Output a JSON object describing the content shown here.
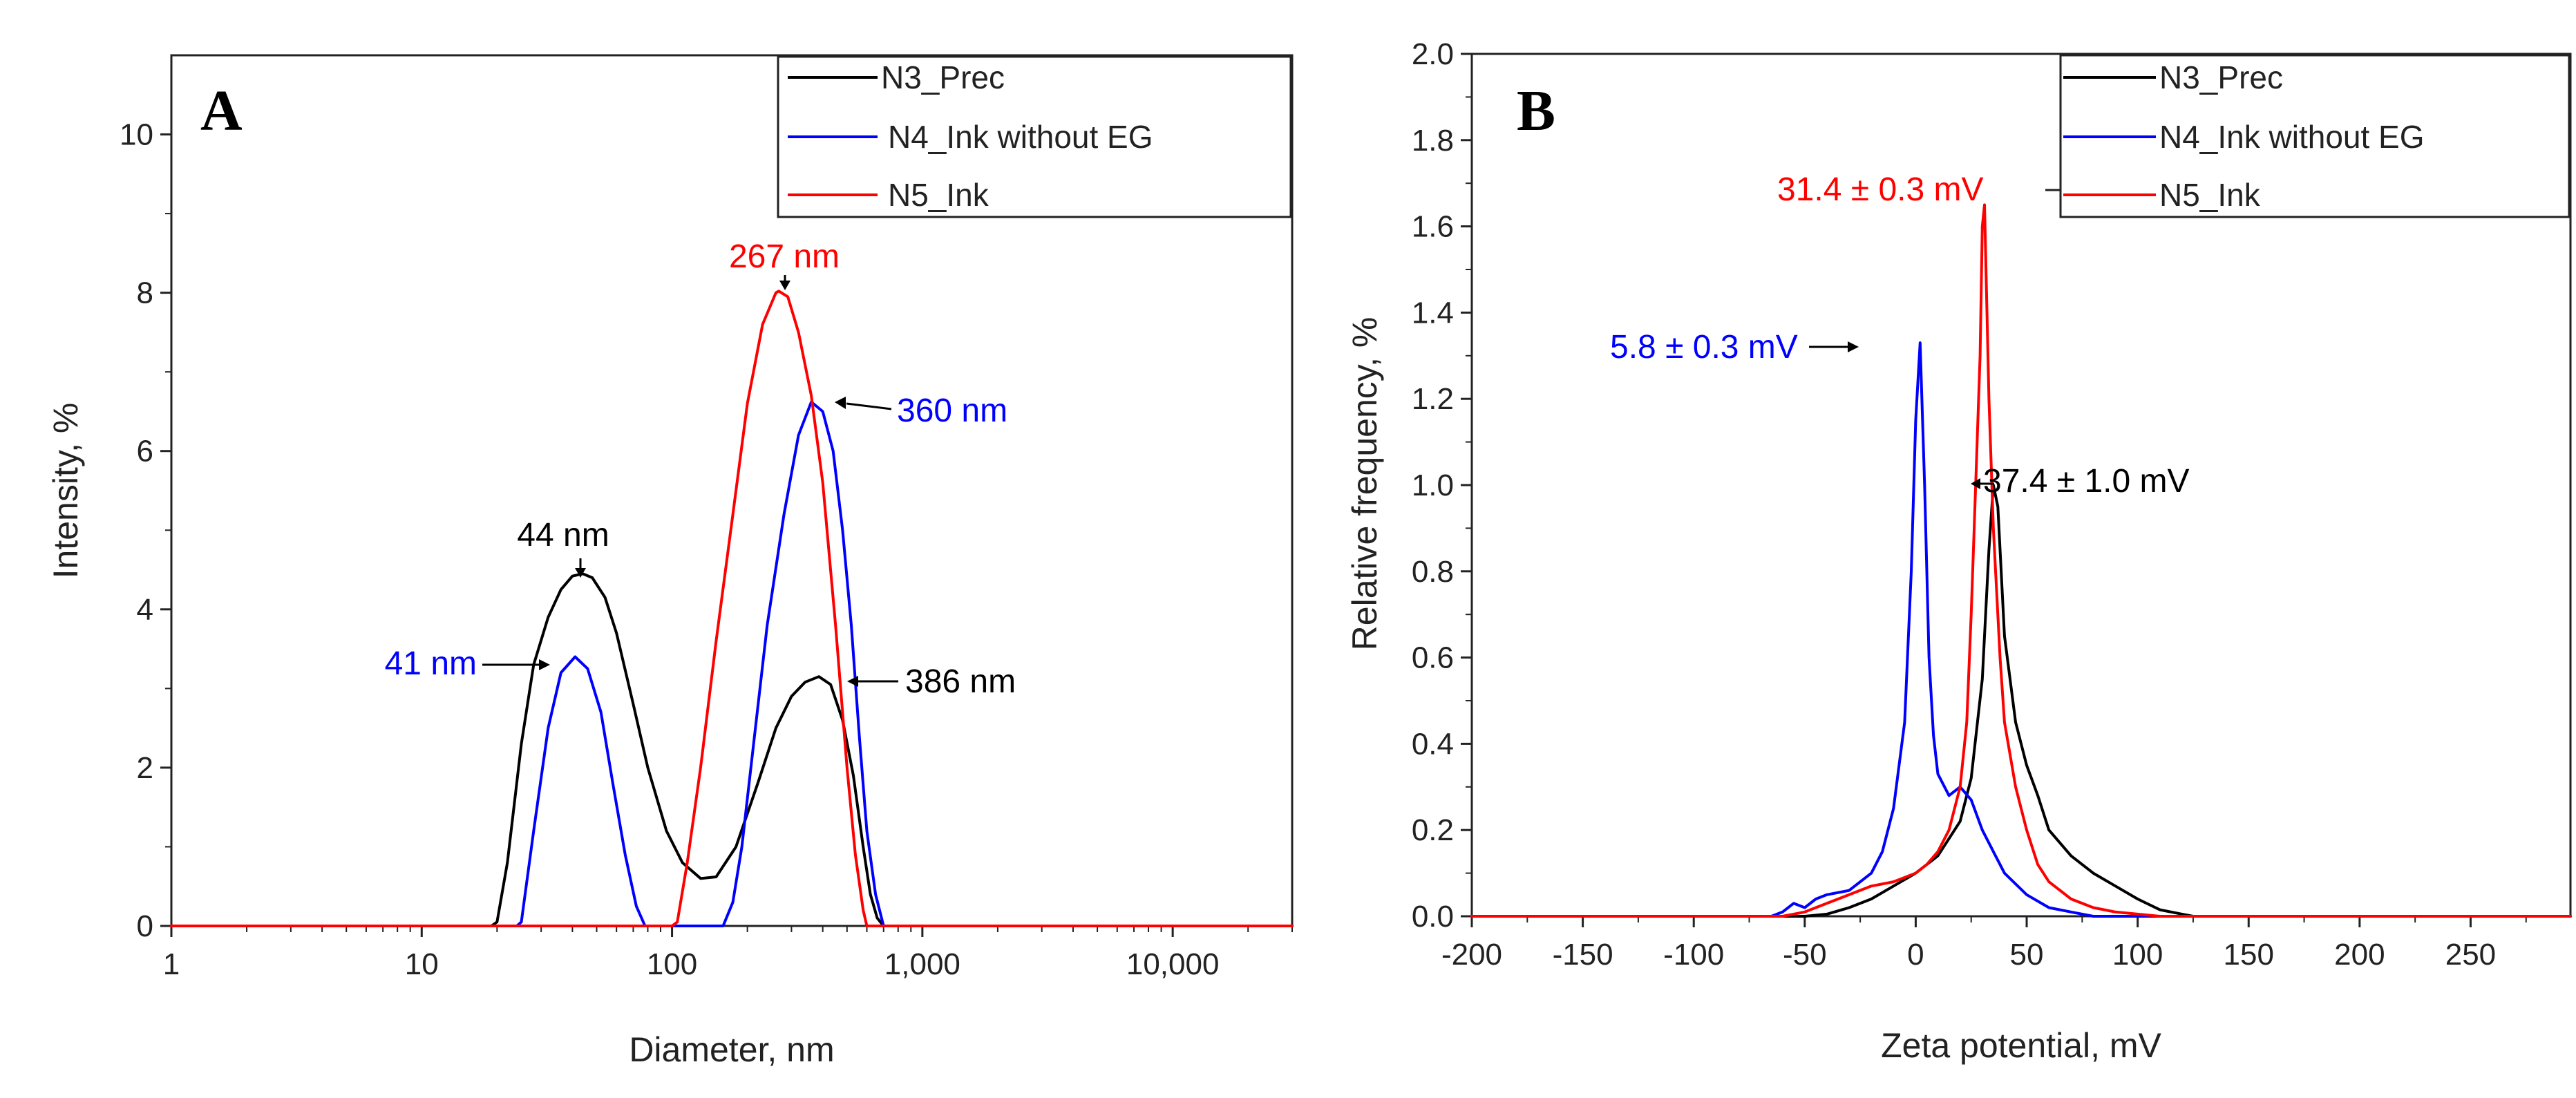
{
  "chart_data": [
    {
      "panel": "A",
      "type": "line",
      "xscale": "log",
      "xlabel": "Diameter, nm",
      "ylabel": "Intensity, %",
      "xlim": [
        1,
        30000
      ],
      "ylim": [
        0,
        11
      ],
      "xticks": [
        {
          "value": 1,
          "label": "1"
        },
        {
          "value": 10,
          "label": "10"
        },
        {
          "value": 100,
          "label": "100"
        },
        {
          "value": 1000,
          "label": "1,000"
        },
        {
          "value": 10000,
          "label": "10,000"
        }
      ],
      "yticks": [
        {
          "value": 0,
          "label": "0"
        },
        {
          "value": 2,
          "label": "2"
        },
        {
          "value": 4,
          "label": "4"
        },
        {
          "value": 6,
          "label": "6"
        },
        {
          "value": 8,
          "label": "8"
        },
        {
          "value": 10,
          "label": "10"
        }
      ],
      "legend": {
        "position": "top-right"
      },
      "series": [
        {
          "name": "N3_Prec",
          "color": "#000000",
          "x": [
            1,
            19,
            20,
            22,
            25,
            28,
            32,
            36,
            40,
            44,
            48,
            54,
            60,
            70,
            80,
            95,
            110,
            130,
            150,
            180,
            220,
            260,
            300,
            340,
            386,
            430,
            480,
            530,
            580,
            620,
            660,
            700,
            30000
          ],
          "y": [
            0,
            0,
            0.05,
            0.8,
            2.3,
            3.3,
            3.9,
            4.25,
            4.42,
            4.45,
            4.4,
            4.15,
            3.7,
            2.8,
            2.0,
            1.2,
            0.8,
            0.6,
            0.62,
            1.0,
            1.8,
            2.5,
            2.9,
            3.08,
            3.15,
            3.05,
            2.6,
            1.9,
            1.0,
            0.4,
            0.1,
            0,
            0
          ]
        },
        {
          "name": "N4_Ink without EG",
          "color": "#0000ff",
          "x": [
            1,
            24,
            25,
            28,
            32,
            36,
            41,
            46,
            52,
            58,
            65,
            72,
            78,
            160,
            175,
            190,
            210,
            240,
            280,
            320,
            360,
            400,
            440,
            480,
            520,
            560,
            600,
            650,
            700,
            30000
          ],
          "y": [
            0,
            0,
            0.05,
            1.2,
            2.5,
            3.2,
            3.4,
            3.25,
            2.7,
            1.8,
            0.9,
            0.25,
            0,
            0,
            0.3,
            1.0,
            2.2,
            3.8,
            5.2,
            6.2,
            6.62,
            6.5,
            6.0,
            5.0,
            3.8,
            2.4,
            1.2,
            0.4,
            0,
            0
          ]
        },
        {
          "name": "N5_Ink",
          "color": "#ff0000",
          "x": [
            1,
            100,
            105,
            115,
            130,
            150,
            175,
            200,
            230,
            260,
            267,
            290,
            320,
            360,
            400,
            450,
            500,
            540,
            580,
            600,
            30000
          ],
          "y": [
            0,
            0,
            0.05,
            0.8,
            2.0,
            3.6,
            5.2,
            6.6,
            7.6,
            8.0,
            8.02,
            7.95,
            7.5,
            6.7,
            5.6,
            3.8,
            2.0,
            0.9,
            0.2,
            0,
            0
          ]
        }
      ],
      "annotations": [
        {
          "text": "44 nm",
          "color": "#000000"
        },
        {
          "text": "41 nm",
          "color": "#0000ff"
        },
        {
          "text": "267 nm",
          "color": "#ff0000"
        },
        {
          "text": "360 nm",
          "color": "#0000ff"
        },
        {
          "text": "386 nm",
          "color": "#000000"
        }
      ]
    },
    {
      "panel": "B",
      "type": "line",
      "xscale": "linear",
      "xlabel": "Zeta potential, mV",
      "ylabel": "Relative frequency, %",
      "xlim": [
        -200,
        295
      ],
      "ylim": [
        0,
        2.0
      ],
      "xticks": [
        {
          "value": -200,
          "label": "-200"
        },
        {
          "value": -150,
          "label": "-150"
        },
        {
          "value": -100,
          "label": "-100"
        },
        {
          "value": -50,
          "label": "-50"
        },
        {
          "value": 0,
          "label": "0"
        },
        {
          "value": 50,
          "label": "50"
        },
        {
          "value": 100,
          "label": "100"
        },
        {
          "value": 150,
          "label": "150"
        },
        {
          "value": 200,
          "label": "200"
        },
        {
          "value": 250,
          "label": "250"
        }
      ],
      "yticks": [
        {
          "value": 0,
          "label": "0.0"
        },
        {
          "value": 0.2,
          "label": "0.2"
        },
        {
          "value": 0.4,
          "label": "0.4"
        },
        {
          "value": 0.6,
          "label": "0.6"
        },
        {
          "value": 0.8,
          "label": "0.8"
        },
        {
          "value": 1.0,
          "label": "1.0"
        },
        {
          "value": 1.2,
          "label": "1.2"
        },
        {
          "value": 1.4,
          "label": "1.4"
        },
        {
          "value": 1.6,
          "label": "1.6"
        },
        {
          "value": 1.8,
          "label": "1.8"
        },
        {
          "value": 2.0,
          "label": "2.0"
        }
      ],
      "legend": {
        "position": "top-right"
      },
      "series": [
        {
          "name": "N3_Prec",
          "color": "#000000",
          "x": [
            -200,
            -50,
            -40,
            -30,
            -20,
            -10,
            0,
            10,
            20,
            25,
            30,
            33,
            35,
            37,
            40,
            45,
            50,
            55,
            60,
            70,
            80,
            90,
            100,
            110,
            120,
            125,
            295
          ],
          "y": [
            0,
            0,
            0.005,
            0.02,
            0.04,
            0.07,
            0.1,
            0.14,
            0.22,
            0.32,
            0.55,
            0.85,
            1.0,
            0.95,
            0.65,
            0.45,
            0.35,
            0.28,
            0.2,
            0.14,
            0.1,
            0.07,
            0.04,
            0.015,
            0.005,
            0,
            0
          ]
        },
        {
          "name": "N4_Ink without EG",
          "color": "#0000ff",
          "x": [
            -200,
            -65,
            -60,
            -55,
            -50,
            -45,
            -40,
            -30,
            -20,
            -15,
            -10,
            -5,
            -2,
            0,
            2,
            4,
            6,
            8,
            10,
            15,
            20,
            25,
            30,
            35,
            40,
            50,
            60,
            70,
            80,
            295
          ],
          "y": [
            0,
            0,
            0.01,
            0.03,
            0.02,
            0.04,
            0.05,
            0.06,
            0.1,
            0.15,
            0.25,
            0.45,
            0.8,
            1.15,
            1.33,
            1.0,
            0.6,
            0.42,
            0.33,
            0.28,
            0.3,
            0.27,
            0.2,
            0.15,
            0.1,
            0.05,
            0.02,
            0.01,
            0,
            0
          ]
        },
        {
          "name": "N5_Ink",
          "color": "#ff0000",
          "x": [
            -200,
            -60,
            -50,
            -40,
            -30,
            -20,
            -10,
            0,
            5,
            10,
            15,
            20,
            23,
            25,
            27,
            29,
            30,
            31,
            33,
            35,
            38,
            40,
            45,
            50,
            55,
            60,
            70,
            80,
            90,
            100,
            110,
            295
          ],
          "y": [
            0,
            0,
            0.01,
            0.03,
            0.05,
            0.07,
            0.08,
            0.1,
            0.12,
            0.15,
            0.2,
            0.3,
            0.45,
            0.7,
            1.0,
            1.3,
            1.6,
            1.65,
            1.2,
            0.9,
            0.6,
            0.45,
            0.3,
            0.2,
            0.12,
            0.08,
            0.04,
            0.02,
            0.01,
            0.005,
            0,
            0
          ]
        }
      ],
      "annotations": [
        {
          "text": "31.4 ± 0.3 mV",
          "color": "#ff0000"
        },
        {
          "text": "5.8 ± 0.3 mV",
          "color": "#0000ff"
        },
        {
          "text": "37.4 ± 1.0 mV",
          "color": "#000000"
        }
      ]
    }
  ]
}
